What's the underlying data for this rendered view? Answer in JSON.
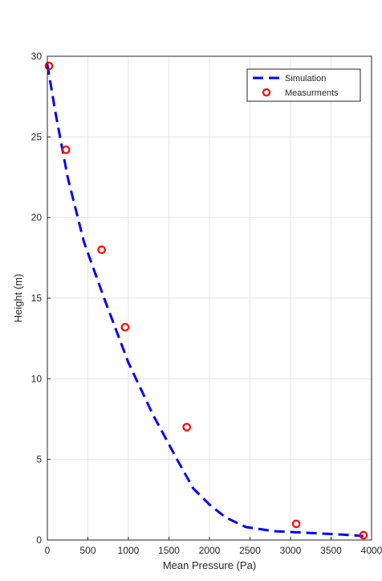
{
  "chart_data": {
    "type": "scatter",
    "title": "",
    "xlabel": "Mean Pressure (Pa)",
    "ylabel": "Height (m)",
    "xlim": [
      0,
      4000
    ],
    "ylim": [
      0,
      30
    ],
    "xticks": [
      0,
      500,
      1000,
      1500,
      2000,
      2500,
      3000,
      3500,
      4000
    ],
    "yticks": [
      0,
      5,
      10,
      15,
      20,
      25,
      30
    ],
    "xtick_labels": [
      "0",
      "500",
      "1000",
      "1500",
      "2000",
      "2500",
      "3000",
      "3500",
      "4000"
    ],
    "ytick_labels": [
      "0",
      "5",
      "10",
      "15",
      "20",
      "25",
      "30"
    ],
    "grid": true,
    "legend_position": "top-right",
    "series": [
      {
        "name": "Simulation",
        "style": "dashed-line",
        "color": "#0000ff",
        "x": [
          0,
          100,
          250,
          450,
          700,
          1000,
          1300,
          1600,
          1800,
          2000,
          2200,
          2450,
          2800,
          3200,
          3600,
          3900
        ],
        "y": [
          29.5,
          26.5,
          22.5,
          18.5,
          15.0,
          11.0,
          7.8,
          5.0,
          3.2,
          2.2,
          1.4,
          0.8,
          0.55,
          0.45,
          0.35,
          0.25
        ]
      },
      {
        "name": "Measurments",
        "style": "circle-markers",
        "color": "#ff0000",
        "x": [
          20,
          230,
          670,
          960,
          1720,
          3070,
          3900
        ],
        "y": [
          29.4,
          24.2,
          18.0,
          13.2,
          7.0,
          1.0,
          0.3
        ]
      }
    ]
  }
}
